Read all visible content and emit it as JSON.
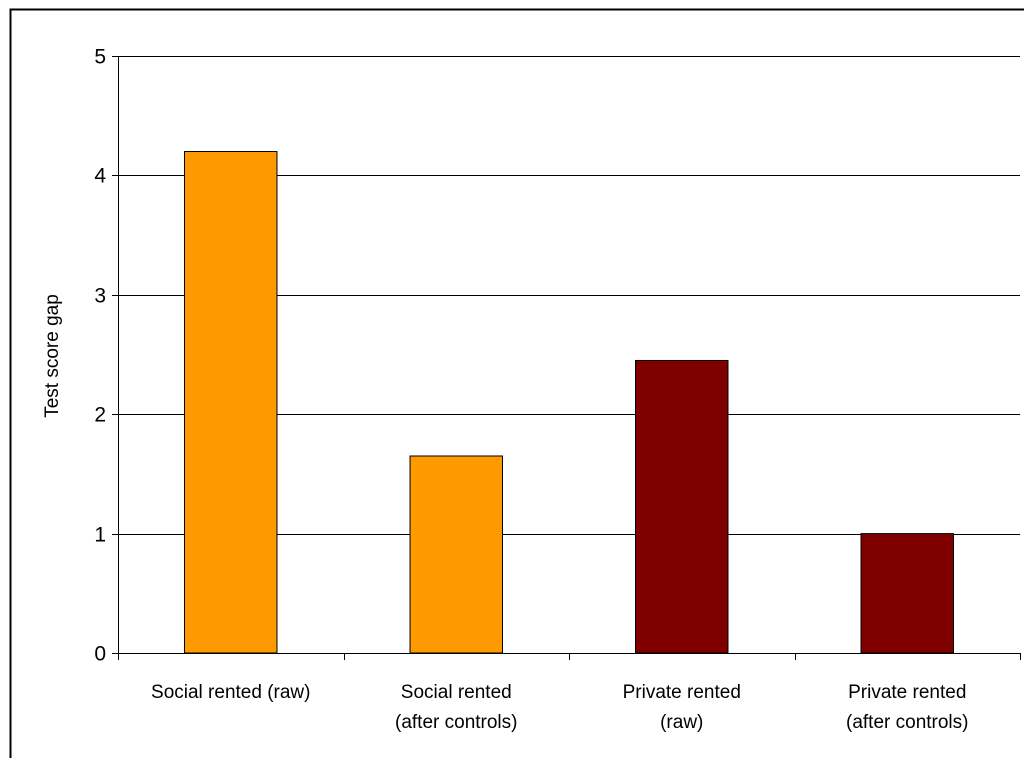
{
  "chart_data": {
    "type": "bar",
    "title": "",
    "xlabel": "",
    "ylabel": "Test score gap",
    "ylim": [
      0,
      5
    ],
    "yticks": [
      0,
      1,
      2,
      3,
      4,
      5
    ],
    "grid": true,
    "legend": "none",
    "categories": [
      [
        "Social rented (raw)"
      ],
      [
        "Social rented",
        "(after controls)"
      ],
      [
        "Private rented",
        "(raw)"
      ],
      [
        "Private rented",
        "(after controls)"
      ]
    ],
    "values": [
      4.2,
      1.65,
      2.45,
      1.0
    ],
    "colors": [
      "#FF9900",
      "#FF9900",
      "#800000",
      "#800000"
    ]
  }
}
